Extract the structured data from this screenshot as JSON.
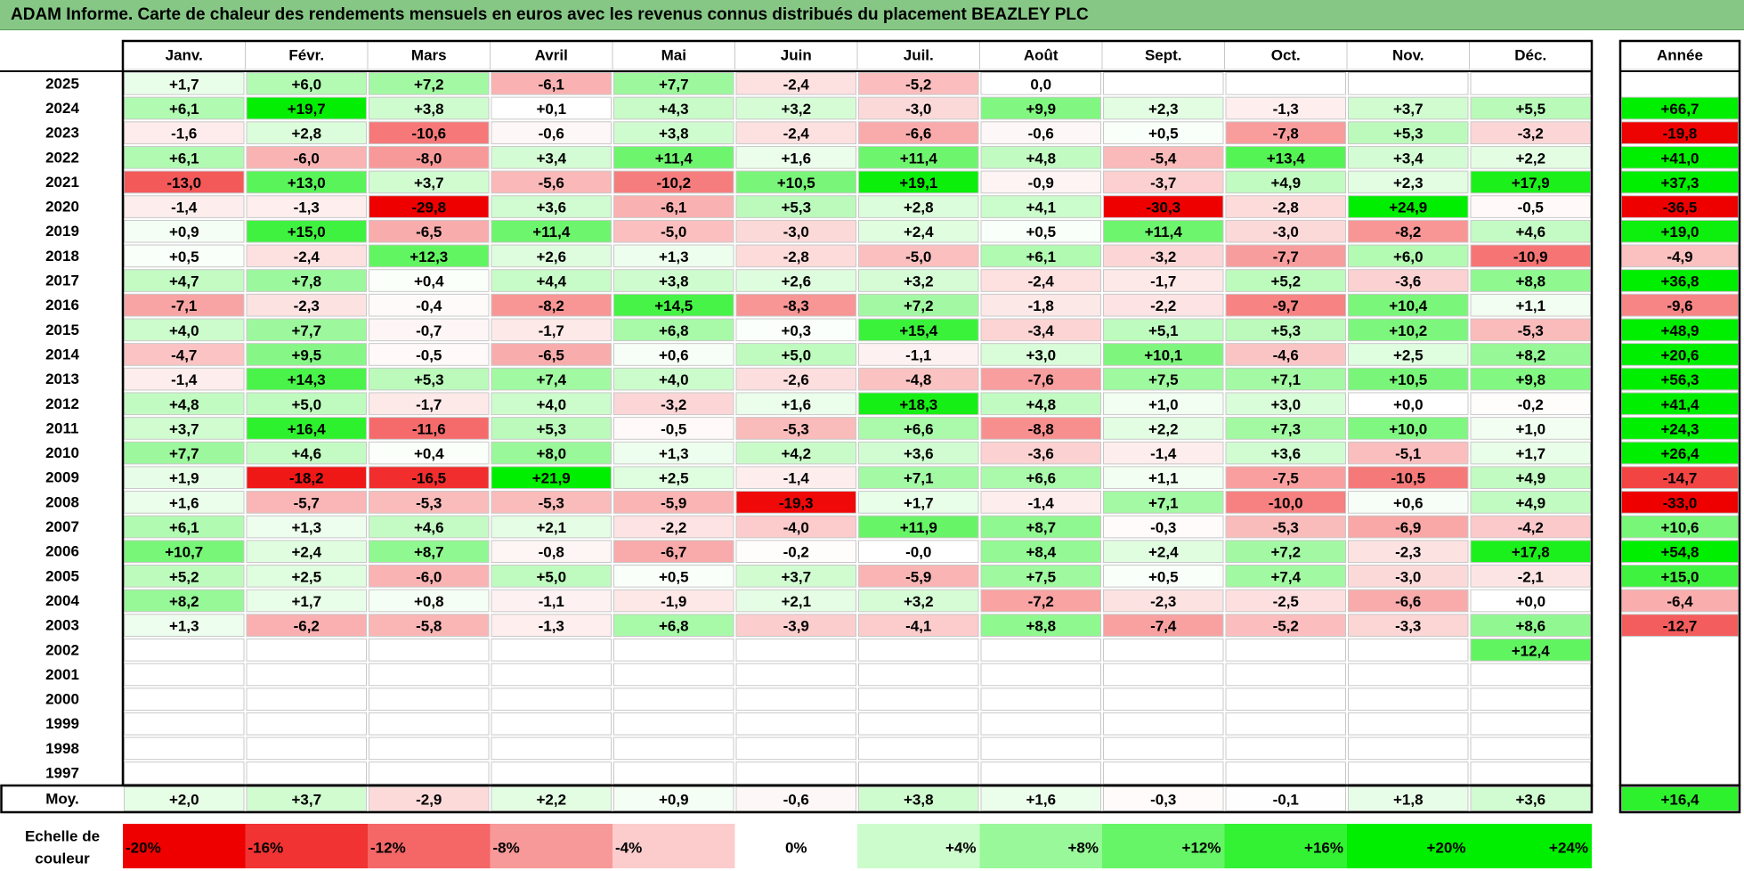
{
  "title": "ADAM Informe. Carte de chaleur des rendements mensuels en euros avec les revenus connus distribués du placement BEAZLEY PLC",
  "chart_data": {
    "type": "heatmap",
    "columns": [
      "Janv.",
      "Févr.",
      "Mars",
      "Avril",
      "Mai",
      "Juin",
      "Juil.",
      "Août",
      "Sept.",
      "Oct.",
      "Nov.",
      "Déc."
    ],
    "year_column_label": "Année",
    "rows": [
      {
        "year": "2025",
        "values": [
          "+1,7",
          "+6,0",
          "+7,2",
          "-6,1",
          "+7,7",
          "-2,4",
          "-5,2",
          "0,0",
          "",
          "",
          "",
          ""
        ],
        "annual": ""
      },
      {
        "year": "2024",
        "values": [
          "+6,1",
          "+19,7",
          "+3,8",
          "+0,1",
          "+4,3",
          "+3,2",
          "-3,0",
          "+9,9",
          "+2,3",
          "-1,3",
          "+3,7",
          "+5,5"
        ],
        "annual": "+66,7"
      },
      {
        "year": "2023",
        "values": [
          "-1,6",
          "+2,8",
          "-10,6",
          "-0,6",
          "+3,8",
          "-2,4",
          "-6,6",
          "-0,6",
          "+0,5",
          "-7,8",
          "+5,3",
          "-3,2"
        ],
        "annual": "-19,8"
      },
      {
        "year": "2022",
        "values": [
          "+6,1",
          "-6,0",
          "-8,0",
          "+3,4",
          "+11,4",
          "+1,6",
          "+11,4",
          "+4,8",
          "-5,4",
          "+13,4",
          "+3,4",
          "+2,2"
        ],
        "annual": "+41,0"
      },
      {
        "year": "2021",
        "values": [
          "-13,0",
          "+13,0",
          "+3,7",
          "-5,6",
          "-10,2",
          "+10,5",
          "+19,1",
          "-0,9",
          "-3,7",
          "+4,9",
          "+2,3",
          "+17,9"
        ],
        "annual": "+37,3"
      },
      {
        "year": "2020",
        "values": [
          "-1,4",
          "-1,3",
          "-29,8",
          "+3,6",
          "-6,1",
          "+5,3",
          "+2,8",
          "+4,1",
          "-30,3",
          "-2,8",
          "+24,9",
          "-0,5"
        ],
        "annual": "-36,5"
      },
      {
        "year": "2019",
        "values": [
          "+0,9",
          "+15,0",
          "-6,5",
          "+11,4",
          "-5,0",
          "-3,0",
          "+2,4",
          "+0,5",
          "+11,4",
          "-3,0",
          "-8,2",
          "+4,6"
        ],
        "annual": "+19,0"
      },
      {
        "year": "2018",
        "values": [
          "+0,5",
          "-2,4",
          "+12,3",
          "+2,6",
          "+1,3",
          "-2,8",
          "-5,0",
          "+6,1",
          "-3,2",
          "-7,7",
          "+6,0",
          "-10,9"
        ],
        "annual": "-4,9"
      },
      {
        "year": "2017",
        "values": [
          "+4,7",
          "+7,8",
          "+0,4",
          "+4,4",
          "+3,8",
          "+2,6",
          "+3,2",
          "-2,4",
          "-1,7",
          "+5,2",
          "-3,6",
          "+8,8"
        ],
        "annual": "+36,8"
      },
      {
        "year": "2016",
        "values": [
          "-7,1",
          "-2,3",
          "-0,4",
          "-8,2",
          "+14,5",
          "-8,3",
          "+7,2",
          "-1,8",
          "-2,2",
          "-9,7",
          "+10,4",
          "+1,1"
        ],
        "annual": "-9,6"
      },
      {
        "year": "2015",
        "values": [
          "+4,0",
          "+7,7",
          "-0,7",
          "-1,7",
          "+6,8",
          "+0,3",
          "+15,4",
          "-3,4",
          "+5,1",
          "+5,3",
          "+10,2",
          "-5,3"
        ],
        "annual": "+48,9"
      },
      {
        "year": "2014",
        "values": [
          "-4,7",
          "+9,5",
          "-0,5",
          "-6,5",
          "+0,6",
          "+5,0",
          "-1,1",
          "+3,0",
          "+10,1",
          "-4,6",
          "+2,5",
          "+8,2"
        ],
        "annual": "+20,6"
      },
      {
        "year": "2013",
        "values": [
          "-1,4",
          "+14,3",
          "+5,3",
          "+7,4",
          "+4,0",
          "-2,6",
          "-4,8",
          "-7,6",
          "+7,5",
          "+7,1",
          "+10,5",
          "+9,8"
        ],
        "annual": "+56,3"
      },
      {
        "year": "2012",
        "values": [
          "+4,8",
          "+5,0",
          "-1,7",
          "+4,0",
          "-3,2",
          "+1,6",
          "+18,3",
          "+4,8",
          "+1,0",
          "+3,0",
          "+0,0",
          "-0,2"
        ],
        "annual": "+41,4"
      },
      {
        "year": "2011",
        "values": [
          "+3,7",
          "+16,4",
          "-11,6",
          "+5,3",
          "-0,5",
          "-5,3",
          "+6,6",
          "-8,8",
          "+2,2",
          "+7,3",
          "+10,0",
          "+1,0"
        ],
        "annual": "+24,3"
      },
      {
        "year": "2010",
        "values": [
          "+7,7",
          "+4,6",
          "+0,4",
          "+8,0",
          "+1,3",
          "+4,2",
          "+3,6",
          "-3,6",
          "-1,4",
          "+3,6",
          "-5,1",
          "+1,7"
        ],
        "annual": "+26,4"
      },
      {
        "year": "2009",
        "values": [
          "+1,9",
          "-18,2",
          "-16,5",
          "+21,9",
          "+2,5",
          "-1,4",
          "+7,1",
          "+6,6",
          "+1,1",
          "-7,5",
          "-10,5",
          "+4,9"
        ],
        "annual": "-14,7"
      },
      {
        "year": "2008",
        "values": [
          "+1,6",
          "-5,7",
          "-5,3",
          "-5,3",
          "-5,9",
          "-19,3",
          "+1,7",
          "-1,4",
          "+7,1",
          "-10,0",
          "+0,6",
          "+4,9"
        ],
        "annual": "-33,0"
      },
      {
        "year": "2007",
        "values": [
          "+6,1",
          "+1,3",
          "+4,6",
          "+2,1",
          "-2,2",
          "-4,0",
          "+11,9",
          "+8,7",
          "-0,3",
          "-5,3",
          "-6,9",
          "-4,2"
        ],
        "annual": "+10,6"
      },
      {
        "year": "2006",
        "values": [
          "+10,7",
          "+2,4",
          "+8,7",
          "-0,8",
          "-6,7",
          "-0,2",
          "-0,0",
          "+8,4",
          "+2,4",
          "+7,2",
          "-2,3",
          "+17,8"
        ],
        "annual": "+54,8"
      },
      {
        "year": "2005",
        "values": [
          "+5,2",
          "+2,5",
          "-6,0",
          "+5,0",
          "+0,5",
          "+3,7",
          "-5,9",
          "+7,5",
          "+0,5",
          "+7,4",
          "-3,0",
          "-2,1"
        ],
        "annual": "+15,0"
      },
      {
        "year": "2004",
        "values": [
          "+8,2",
          "+1,7",
          "+0,8",
          "-1,1",
          "-1,9",
          "+2,1",
          "+3,2",
          "-7,2",
          "-2,3",
          "-2,5",
          "-6,6",
          "+0,0"
        ],
        "annual": "-6,4"
      },
      {
        "year": "2003",
        "values": [
          "+1,3",
          "-6,2",
          "-5,8",
          "-1,3",
          "+6,8",
          "-3,9",
          "-4,1",
          "+8,8",
          "-7,4",
          "-5,2",
          "-3,3",
          "+8,6"
        ],
        "annual": "-12,7"
      },
      {
        "year": "2002",
        "values": [
          "",
          "",
          "",
          "",
          "",
          "",
          "",
          "",
          "",
          "",
          "",
          "+12,4"
        ],
        "annual": ""
      },
      {
        "year": "2001",
        "values": [
          "",
          "",
          "",
          "",
          "",
          "",
          "",
          "",
          "",
          "",
          "",
          ""
        ],
        "annual": ""
      },
      {
        "year": "2000",
        "values": [
          "",
          "",
          "",
          "",
          "",
          "",
          "",
          "",
          "",
          "",
          "",
          ""
        ],
        "annual": ""
      },
      {
        "year": "1999",
        "values": [
          "",
          "",
          "",
          "",
          "",
          "",
          "",
          "",
          "",
          "",
          "",
          ""
        ],
        "annual": ""
      },
      {
        "year": "1998",
        "values": [
          "",
          "",
          "",
          "",
          "",
          "",
          "",
          "",
          "",
          "",
          "",
          ""
        ],
        "annual": ""
      },
      {
        "year": "1997",
        "values": [
          "",
          "",
          "",
          "",
          "",
          "",
          "",
          "",
          "",
          "",
          "",
          ""
        ],
        "annual": ""
      }
    ],
    "average": {
      "label": "Moy.",
      "values": [
        "+2,0",
        "+3,7",
        "-2,9",
        "+2,2",
        "+0,9",
        "-0,6",
        "+3,8",
        "+1,6",
        "-0,3",
        "-0,1",
        "+1,8",
        "+3,6"
      ],
      "annual": "+16,4"
    },
    "scale": {
      "label_lines": [
        "Echelle de",
        "couleur"
      ],
      "steps": [
        {
          "label": "-20%",
          "value": -20
        },
        {
          "label": "-16%",
          "value": -16
        },
        {
          "label": "-12%",
          "value": -12
        },
        {
          "label": "-8%",
          "value": -8
        },
        {
          "label": "-4%",
          "value": -4
        },
        {
          "label": "0%",
          "value": 0
        },
        {
          "label": "+4%",
          "value": 4
        },
        {
          "label": "+8%",
          "value": 8
        },
        {
          "label": "+12%",
          "value": 12
        },
        {
          "label": "+16%",
          "value": 16
        },
        {
          "label": "+20%",
          "value": 20
        },
        {
          "label": "+24%",
          "value": 24
        }
      ]
    },
    "colors": {
      "negative_max": "#ee0000",
      "neutral": "#ffffff",
      "positive_max": "#00ee00",
      "title_bar": "#86c786"
    }
  }
}
